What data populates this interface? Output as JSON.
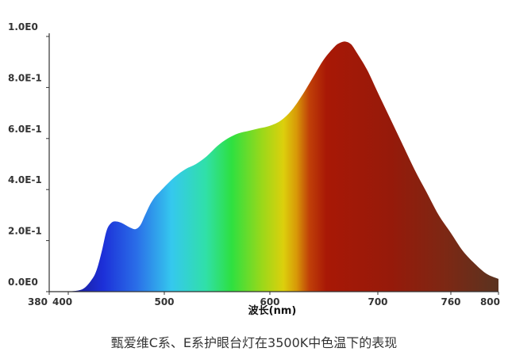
{
  "chart_data": {
    "type": "area",
    "title": "",
    "caption": "甄爱维C系、E系护眼台灯在3500K中色温下的表现",
    "xlabel": "波长(nm)",
    "ylabel": "",
    "xlim": [
      380,
      800
    ],
    "ylim": [
      0,
      1.0
    ],
    "x_ticks": [
      {
        "value": 380,
        "label": "380"
      },
      {
        "value": 400,
        "label": "400"
      },
      {
        "value": 500,
        "label": "500"
      },
      {
        "value": 600,
        "label": "600"
      },
      {
        "value": 700,
        "label": "700"
      },
      {
        "value": 760,
        "label": "760"
      },
      {
        "value": 800,
        "label": "800"
      }
    ],
    "y_ticks": [
      {
        "value": 0.0,
        "label": "0.0E0"
      },
      {
        "value": 0.2,
        "label": "2.0E-1"
      },
      {
        "value": 0.4,
        "label": "4.0E-1"
      },
      {
        "value": 0.6,
        "label": "6.0E-1"
      },
      {
        "value": 0.8,
        "label": "8.0E-1"
      },
      {
        "value": 1.0,
        "label": "1.0E0"
      }
    ],
    "grid": false,
    "fill": "spectral-gradient",
    "series": [
      {
        "x": [
          400,
          415,
          425,
          430,
          435,
          440,
          445,
          450,
          455,
          460,
          465,
          470,
          475,
          480,
          485,
          490,
          495,
          500,
          510,
          520,
          530,
          540,
          550,
          560,
          570,
          580,
          590,
          600,
          610,
          620,
          630,
          640,
          650,
          660,
          665,
          670,
          675,
          680,
          690,
          700,
          710,
          720,
          730,
          740,
          750,
          760,
          770,
          780,
          790,
          800
        ],
        "values": [
          0.0,
          0.01,
          0.05,
          0.09,
          0.16,
          0.24,
          0.27,
          0.275,
          0.27,
          0.26,
          0.25,
          0.245,
          0.26,
          0.3,
          0.34,
          0.37,
          0.39,
          0.41,
          0.45,
          0.48,
          0.5,
          0.53,
          0.57,
          0.6,
          0.62,
          0.63,
          0.64,
          0.65,
          0.67,
          0.71,
          0.77,
          0.84,
          0.91,
          0.96,
          0.975,
          0.98,
          0.97,
          0.94,
          0.87,
          0.78,
          0.68,
          0.58,
          0.48,
          0.39,
          0.3,
          0.23,
          0.16,
          0.11,
          0.07,
          0.05
        ]
      }
    ]
  }
}
